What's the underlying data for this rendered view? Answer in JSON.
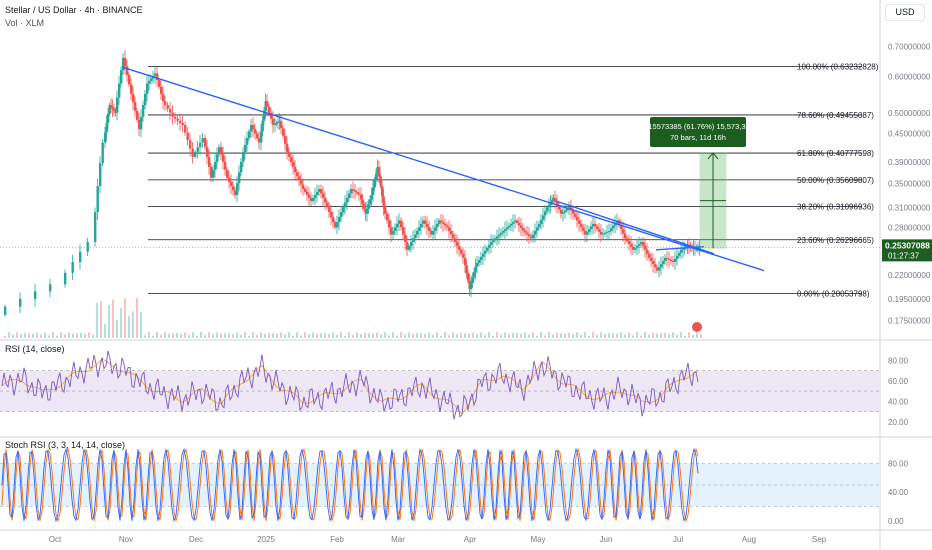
{
  "header": {
    "title": "Stellar / US Dollar · 4h · BINANCE",
    "volume_label": "Vol · XLM",
    "currency": "USD"
  },
  "colors": {
    "candle_up": "#26a69a",
    "candle_down": "#ef5350",
    "trendline": "#2962ff",
    "fib_line": "#131722",
    "measure_fill": "#4caf50",
    "measure_label_bg": "#1b5e20",
    "price_badge_bg": "#1b5e20",
    "rsi_line": "#7e57c2",
    "rsi_ma": "#f7a600",
    "rsi_band": "#ede7f6",
    "stoch_k": "#2962ff",
    "stoch_d": "#ff6d00",
    "stoch_band": "#e3f2fd"
  },
  "chart_data": [
    {
      "type": "candlestick",
      "symbol": "XLM/USD",
      "timeframe": "4h",
      "exchange": "BINANCE",
      "y_scale": "log",
      "ylim": [
        0.16,
        0.76
      ],
      "price_ticks": [
        "0.70000000",
        "0.60000000",
        "0.50000000",
        "0.45000000",
        "0.39000000",
        "0.35000000",
        "0.31000000",
        "0.28000000",
        "0.22000000",
        "0.19500000",
        "0.17500000"
      ],
      "x_ticks": [
        "Oct",
        "Nov",
        "Dec",
        "2025",
        "Feb",
        "Mar",
        "Apr",
        "May",
        "Jun",
        "Jul",
        "Aug",
        "Sep"
      ],
      "current_price": "0.25307088",
      "countdown": "01:27:37",
      "fibonacci": [
        {
          "level": "100.00%",
          "value": "0.63232828"
        },
        {
          "level": "78.60%",
          "value": "0.49455087"
        },
        {
          "level": "61.80%",
          "value": "0.40777598"
        },
        {
          "level": "50.00%",
          "value": "0.35609807"
        },
        {
          "level": "38.20%",
          "value": "0.31096936"
        },
        {
          "level": "23.60%",
          "value": "0.26296665"
        },
        {
          "level": "0.00%",
          "value": "0.20053798"
        }
      ],
      "measure": {
        "line1": "0.15573385 (61.76%) 15,573,385",
        "line2": "70 bars, 11d 16h",
        "from": 0.252,
        "to": 0.408
      },
      "price_path": [
        [
          0,
          0.18
        ],
        [
          3,
          0.21
        ],
        [
          4.5,
          0.26
        ],
        [
          5,
          0.43
        ],
        [
          5.3,
          0.52
        ],
        [
          5.6,
          0.5
        ],
        [
          6,
          0.66
        ],
        [
          6.4,
          0.55
        ],
        [
          6.8,
          0.46
        ],
        [
          7.2,
          0.58
        ],
        [
          7.6,
          0.61
        ],
        [
          8,
          0.53
        ],
        [
          8.5,
          0.49
        ],
        [
          9,
          0.47
        ],
        [
          9.5,
          0.4
        ],
        [
          10,
          0.44
        ],
        [
          10.4,
          0.36
        ],
        [
          10.8,
          0.42
        ],
        [
          11.2,
          0.36
        ],
        [
          11.6,
          0.33
        ],
        [
          12,
          0.41
        ],
        [
          12.4,
          0.47
        ],
        [
          12.8,
          0.43
        ],
        [
          13.1,
          0.53
        ],
        [
          13.5,
          0.47
        ],
        [
          13.8,
          0.48
        ],
        [
          14.2,
          0.41
        ],
        [
          14.6,
          0.37
        ],
        [
          15,
          0.34
        ],
        [
          15.4,
          0.32
        ],
        [
          15.8,
          0.34
        ],
        [
          16.2,
          0.31
        ],
        [
          16.6,
          0.28
        ],
        [
          17,
          0.31
        ],
        [
          17.4,
          0.34
        ],
        [
          17.8,
          0.33
        ],
        [
          18.1,
          0.3
        ],
        [
          18.4,
          0.33
        ],
        [
          18.7,
          0.38
        ],
        [
          19,
          0.31
        ],
        [
          19.4,
          0.27
        ],
        [
          19.8,
          0.29
        ],
        [
          20.2,
          0.25
        ],
        [
          20.6,
          0.27
        ],
        [
          21,
          0.29
        ],
        [
          21.4,
          0.27
        ],
        [
          21.8,
          0.29
        ],
        [
          22.2,
          0.28
        ],
        [
          22.6,
          0.26
        ],
        [
          23,
          0.24
        ],
        [
          23.3,
          0.205
        ],
        [
          23.6,
          0.23
        ],
        [
          24,
          0.245
        ],
        [
          24.4,
          0.26
        ],
        [
          24.8,
          0.27
        ],
        [
          25.2,
          0.28
        ],
        [
          25.6,
          0.29
        ],
        [
          26,
          0.275
        ],
        [
          26.4,
          0.265
        ],
        [
          26.8,
          0.285
        ],
        [
          27.2,
          0.31
        ],
        [
          27.5,
          0.325
        ],
        [
          27.9,
          0.3
        ],
        [
          28.3,
          0.31
        ],
        [
          28.7,
          0.29
        ],
        [
          29.1,
          0.27
        ],
        [
          29.5,
          0.285
        ],
        [
          29.9,
          0.27
        ],
        [
          30.3,
          0.275
        ],
        [
          30.7,
          0.29
        ],
        [
          31.1,
          0.265
        ],
        [
          31.5,
          0.25
        ],
        [
          31.9,
          0.26
        ],
        [
          32.3,
          0.24
        ],
        [
          32.7,
          0.225
        ],
        [
          33.1,
          0.24
        ],
        [
          33.5,
          0.235
        ],
        [
          33.9,
          0.25
        ],
        [
          34.2,
          0.255
        ],
        [
          34.5,
          0.252
        ],
        [
          34.8,
          0.253
        ]
      ],
      "trendlines": [
        {
          "name": "main",
          "from": [
            5.9,
            0.63
          ],
          "to": [
            38,
            0.225
          ]
        },
        {
          "name": "short",
          "from": [
            27.6,
            0.32
          ],
          "to": [
            35.5,
            0.245
          ]
        },
        {
          "name": "base",
          "from": [
            32.6,
            0.25
          ],
          "to": [
            35.0,
            0.254
          ]
        }
      ]
    },
    {
      "type": "line",
      "title": "RSI (14, close)",
      "ylim": [
        10,
        95
      ],
      "y_ticks": [
        "80.00",
        "60.00",
        "40.00",
        "20.00"
      ],
      "band": [
        30,
        70
      ],
      "mid": 50,
      "points": [
        [
          0,
          55
        ],
        [
          1,
          62
        ],
        [
          2,
          48
        ],
        [
          3,
          58
        ],
        [
          4,
          70
        ],
        [
          5,
          78
        ],
        [
          6,
          72
        ],
        [
          7,
          58
        ],
        [
          8,
          48
        ],
        [
          9,
          42
        ],
        [
          10,
          50
        ],
        [
          11,
          38
        ],
        [
          12,
          60
        ],
        [
          13,
          72
        ],
        [
          14,
          52
        ],
        [
          15,
          40
        ],
        [
          16,
          44
        ],
        [
          17,
          52
        ],
        [
          18,
          60
        ],
        [
          19,
          38
        ],
        [
          20,
          45
        ],
        [
          21,
          55
        ],
        [
          22,
          42
        ],
        [
          23,
          30
        ],
        [
          24,
          58
        ],
        [
          25,
          66
        ],
        [
          26,
          52
        ],
        [
          27,
          76
        ],
        [
          28,
          60
        ],
        [
          29,
          48
        ],
        [
          30,
          42
        ],
        [
          31,
          52
        ],
        [
          32,
          38
        ],
        [
          33,
          46
        ],
        [
          34,
          64
        ],
        [
          34.8,
          68
        ]
      ]
    },
    {
      "type": "line",
      "title": "Stoch RSI (3, 3, 14, 14, close)",
      "ylim": [
        -10,
        110
      ],
      "y_ticks": [
        "80.00",
        "40.00",
        "0.00"
      ],
      "band": [
        20,
        80
      ],
      "mid": 50,
      "oscillation": "high-frequency 0-100"
    }
  ]
}
